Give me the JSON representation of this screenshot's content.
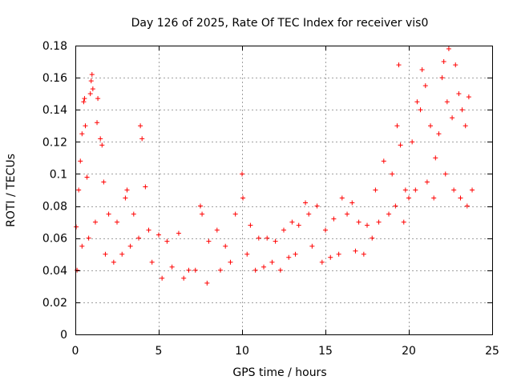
{
  "chart_data": {
    "type": "scatter",
    "title": "Day 126 of 2025, Rate Of TEC Index for receiver vis0",
    "xlabel": "GPS time / hours",
    "ylabel": "ROTI / TECUs",
    "xlim": [
      0,
      25
    ],
    "ylim": [
      0,
      0.18
    ],
    "x_ticks": [
      0,
      5,
      10,
      15,
      20,
      25
    ],
    "y_ticks": [
      0,
      0.02,
      0.04,
      0.06,
      0.08,
      0.1,
      0.12,
      0.14,
      0.16,
      0.18
    ],
    "grid": true,
    "legend": "none",
    "marker": "+",
    "color": "#ff0000",
    "series": [
      {
        "points": [
          [
            0.05,
            0.067
          ],
          [
            0.2,
            0.09
          ],
          [
            0.3,
            0.108
          ],
          [
            0.4,
            0.125
          ],
          [
            0.5,
            0.145
          ],
          [
            0.55,
            0.147
          ],
          [
            0.6,
            0.13
          ],
          [
            0.7,
            0.098
          ],
          [
            0.9,
            0.15
          ],
          [
            0.95,
            0.158
          ],
          [
            1.0,
            0.162
          ],
          [
            1.05,
            0.153
          ],
          [
            1.3,
            0.132
          ],
          [
            1.35,
            0.147
          ],
          [
            1.5,
            0.122
          ],
          [
            1.6,
            0.118
          ],
          [
            1.7,
            0.095
          ],
          [
            2.0,
            0.075
          ],
          [
            2.5,
            0.07
          ],
          [
            3.0,
            0.085
          ],
          [
            3.1,
            0.09
          ],
          [
            3.5,
            0.075
          ],
          [
            3.9,
            0.13
          ],
          [
            4.0,
            0.122
          ],
          [
            4.2,
            0.092
          ],
          [
            4.4,
            0.065
          ],
          [
            5.0,
            0.062
          ],
          [
            5.5,
            0.058
          ],
          [
            6.2,
            0.063
          ],
          [
            6.8,
            0.04
          ],
          [
            7.5,
            0.08
          ],
          [
            7.6,
            0.075
          ],
          [
            8.0,
            0.058
          ],
          [
            8.5,
            0.065
          ],
          [
            9.0,
            0.055
          ],
          [
            9.6,
            0.075
          ],
          [
            10.0,
            0.1
          ],
          [
            10.05,
            0.085
          ],
          [
            10.5,
            0.068
          ],
          [
            11.0,
            0.06
          ],
          [
            11.5,
            0.06
          ],
          [
            12.0,
            0.058
          ],
          [
            12.5,
            0.065
          ],
          [
            13.0,
            0.07
          ],
          [
            13.4,
            0.068
          ],
          [
            13.8,
            0.082
          ],
          [
            14.0,
            0.075
          ],
          [
            14.5,
            0.08
          ],
          [
            15.0,
            0.065
          ],
          [
            15.5,
            0.072
          ],
          [
            16.0,
            0.085
          ],
          [
            16.3,
            0.075
          ],
          [
            16.6,
            0.082
          ],
          [
            17.0,
            0.07
          ],
          [
            17.5,
            0.068
          ],
          [
            18.0,
            0.09
          ],
          [
            18.5,
            0.108
          ],
          [
            19.0,
            0.1
          ],
          [
            19.3,
            0.13
          ],
          [
            19.4,
            0.168
          ],
          [
            19.5,
            0.118
          ],
          [
            19.8,
            0.09
          ],
          [
            20.2,
            0.12
          ],
          [
            20.5,
            0.145
          ],
          [
            20.7,
            0.14
          ],
          [
            20.8,
            0.165
          ],
          [
            21.0,
            0.155
          ],
          [
            21.3,
            0.13
          ],
          [
            21.6,
            0.11
          ],
          [
            21.8,
            0.125
          ],
          [
            22.0,
            0.16
          ],
          [
            22.1,
            0.17
          ],
          [
            22.3,
            0.145
          ],
          [
            22.4,
            0.178
          ],
          [
            22.6,
            0.135
          ],
          [
            22.8,
            0.168
          ],
          [
            23.0,
            0.15
          ],
          [
            23.2,
            0.14
          ],
          [
            23.4,
            0.13
          ],
          [
            23.6,
            0.148
          ],
          [
            23.8,
            0.09
          ],
          [
            0.1,
            0.04
          ],
          [
            0.4,
            0.055
          ],
          [
            0.8,
            0.06
          ],
          [
            1.2,
            0.07
          ],
          [
            1.8,
            0.05
          ],
          [
            2.3,
            0.045
          ],
          [
            2.8,
            0.05
          ],
          [
            3.3,
            0.055
          ],
          [
            3.8,
            0.06
          ],
          [
            4.6,
            0.045
          ],
          [
            5.2,
            0.035
          ],
          [
            5.8,
            0.042
          ],
          [
            6.5,
            0.035
          ],
          [
            7.2,
            0.04
          ],
          [
            7.9,
            0.032
          ],
          [
            8.7,
            0.04
          ],
          [
            9.3,
            0.045
          ],
          [
            10.3,
            0.05
          ],
          [
            10.8,
            0.04
          ],
          [
            11.3,
            0.042
          ],
          [
            11.8,
            0.045
          ],
          [
            12.3,
            0.04
          ],
          [
            12.8,
            0.048
          ],
          [
            13.2,
            0.05
          ],
          [
            14.2,
            0.055
          ],
          [
            14.8,
            0.045
          ],
          [
            15.3,
            0.048
          ],
          [
            15.8,
            0.05
          ],
          [
            16.8,
            0.052
          ],
          [
            17.3,
            0.05
          ],
          [
            17.8,
            0.06
          ],
          [
            18.2,
            0.07
          ],
          [
            18.8,
            0.075
          ],
          [
            19.2,
            0.08
          ],
          [
            19.7,
            0.07
          ],
          [
            20.0,
            0.085
          ],
          [
            20.4,
            0.09
          ],
          [
            21.1,
            0.095
          ],
          [
            21.5,
            0.085
          ],
          [
            22.2,
            0.1
          ],
          [
            22.7,
            0.09
          ],
          [
            23.1,
            0.085
          ],
          [
            23.5,
            0.08
          ]
        ]
      }
    ]
  }
}
